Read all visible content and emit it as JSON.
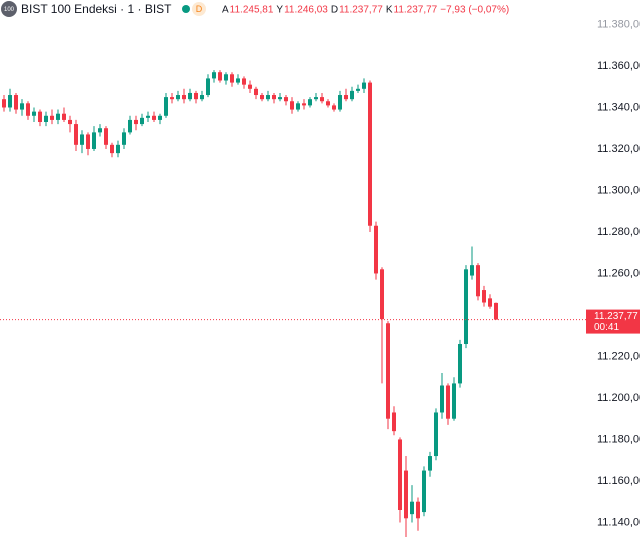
{
  "header": {
    "badge": "100",
    "symbol": "BIST 100 Endeksi · 1 · BIST",
    "flag": "D",
    "ohlc": [
      {
        "label": "A",
        "value": "11.245,81"
      },
      {
        "label": "Y",
        "value": "11.246,03"
      },
      {
        "label": "D",
        "value": "11.237,77"
      },
      {
        "label": "K",
        "value": "11.237,77"
      }
    ],
    "change": "−7,93 (−0,07%)"
  },
  "chart_data": {
    "type": "candlestick",
    "up_color": "#089981",
    "down_color": "#f23645",
    "open": [
      11344,
      11340,
      11346,
      11339,
      11342,
      11336,
      11338,
      11333,
      11336,
      11334,
      11337,
      11334,
      11332,
      11322,
      11327,
      11320,
      11328,
      11330,
      11322,
      11318,
      11322,
      11328,
      11334,
      11332,
      11335,
      11336,
      11334,
      11336,
      11345,
      11344,
      11346,
      11344,
      11347,
      11344,
      11346,
      11354,
      11357,
      11353,
      11356,
      11352,
      11354,
      11351,
      11349,
      11346,
      11344,
      11346,
      11344,
      11345,
      11343,
      11339,
      11342,
      11341,
      11344,
      11345,
      11343,
      11341,
      11339,
      11346,
      11344,
      11348,
      11349,
      11352,
      11283,
      11262,
      11236,
      11193,
      11180,
      11165,
      11144,
      11150,
      11145,
      11165,
      11172,
      11193,
      11206,
      11190,
      11207,
      11226,
      11259,
      11264,
      11252,
      11248,
      11245.81
    ],
    "high": [
      11346,
      11349,
      11347,
      11344,
      11343,
      11340,
      11339,
      11338,
      11339,
      11339,
      11340,
      11336,
      11334,
      11329,
      11328,
      11331,
      11332,
      11331,
      11323,
      11324,
      11330,
      11336,
      11336,
      11337,
      11338,
      11338,
      11337,
      11347,
      11347,
      11348,
      11349,
      11349,
      11348,
      11348,
      11356,
      11358,
      11358,
      11357,
      11357,
      11356,
      11355,
      11353,
      11350,
      11347,
      11348,
      11347,
      11347,
      11346,
      11345,
      11343,
      11344,
      11345,
      11347,
      11347,
      11344,
      11342,
      11348,
      11349,
      11350,
      11351,
      11354,
      11353,
      11285,
      11263,
      11237,
      11196,
      11181,
      11172,
      11158,
      11152,
      11167,
      11174,
      11195,
      11212,
      11207,
      11210,
      11228,
      11264,
      11273,
      11265,
      11254,
      11250,
      11246.03
    ],
    "low": [
      11338,
      11338,
      11337,
      11336,
      11334,
      11333,
      11331,
      11331,
      11332,
      11332,
      11333,
      11328,
      11319,
      11318,
      11317,
      11319,
      11326,
      11320,
      11316,
      11316,
      11320,
      11327,
      11329,
      11331,
      11333,
      11333,
      11332,
      11335,
      11342,
      11343,
      11342,
      11343,
      11342,
      11343,
      11345,
      11352,
      11352,
      11351,
      11350,
      11351,
      11349,
      11347,
      11344,
      11343,
      11343,
      11342,
      11343,
      11341,
      11337,
      11338,
      11339,
      11340,
      11343,
      11342,
      11340,
      11338,
      11338,
      11343,
      11343,
      11347,
      11347,
      11280,
      11257,
      11207,
      11185,
      11182,
      11140,
      11133,
      11140,
      11136,
      11143,
      11162,
      11170,
      11190,
      11187,
      11189,
      11205,
      11224,
      11257,
      11247,
      11244,
      11243,
      11237.77
    ],
    "close": [
      11340,
      11346,
      11339,
      11342,
      11336,
      11338,
      11333,
      11336,
      11334,
      11337,
      11334,
      11332,
      11322,
      11327,
      11320,
      11328,
      11330,
      11322,
      11318,
      11322,
      11328,
      11334,
      11332,
      11335,
      11336,
      11334,
      11336,
      11345,
      11344,
      11346,
      11344,
      11347,
      11344,
      11346,
      11354,
      11357,
      11353,
      11356,
      11352,
      11354,
      11351,
      11349,
      11346,
      11344,
      11346,
      11344,
      11345,
      11343,
      11339,
      11342,
      11341,
      11344,
      11345,
      11343,
      11341,
      11339,
      11346,
      11344,
      11348,
      11349,
      11352,
      11283,
      11260,
      11238,
      11190,
      11184,
      11146,
      11142,
      11150,
      11142,
      11165,
      11172,
      11193,
      11206,
      11190,
      11207,
      11226,
      11262,
      11264,
      11249,
      11246,
      11244,
      11237.77
    ],
    "ylim": [
      11127.2,
      11391.8
    ],
    "yticks": [
      {
        "value": 11380,
        "label": "11.380,00"
      },
      {
        "value": 11360,
        "label": "11.360,00"
      },
      {
        "value": 11340,
        "label": "11.340,00"
      },
      {
        "value": 11320,
        "label": "11.320,00"
      },
      {
        "value": 11300,
        "label": "11.300,00"
      },
      {
        "value": 11280,
        "label": "11.280,00"
      },
      {
        "value": 11260,
        "label": "11.260,00"
      },
      {
        "value": 11220,
        "label": "11.220,00"
      },
      {
        "value": 11200,
        "label": "11.200,00"
      },
      {
        "value": 11180,
        "label": "11.180,00"
      },
      {
        "value": 11160,
        "label": "11.160,00"
      },
      {
        "value": 11140,
        "label": "11.140,00"
      }
    ],
    "last_price": {
      "value": 11237.77,
      "label": "11.237,77"
    },
    "countdown": "00:41"
  }
}
